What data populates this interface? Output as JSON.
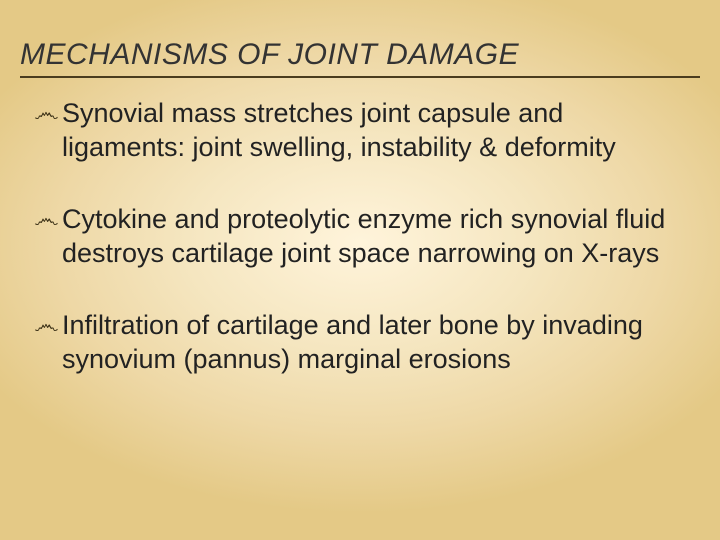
{
  "slide": {
    "title": "MECHANISMS OF JOINT DAMAGE",
    "title_fontsize": 30,
    "title_color": "#333333",
    "title_underline_color": "#4a3c1e",
    "body_fontsize": 27,
    "body_color": "#222222",
    "bullet_glyph": "෴",
    "bullet_color": "#3a2f15",
    "background_gradient": {
      "type": "radial",
      "center_color": "#fff4db",
      "mid_color": "#eed8a6",
      "edge_color": "#e4c986"
    },
    "bullets": [
      {
        "text": "Synovial mass stretches joint capsule and ligaments: joint swelling, instability & deformity"
      },
      {
        "text": "Cytokine and proteolytic enzyme rich synovial fluid destroys cartilage  joint space narrowing on X-rays"
      },
      {
        "text": "Infiltration of cartilage and later bone by invading synovium (pannus) marginal erosions"
      }
    ]
  }
}
